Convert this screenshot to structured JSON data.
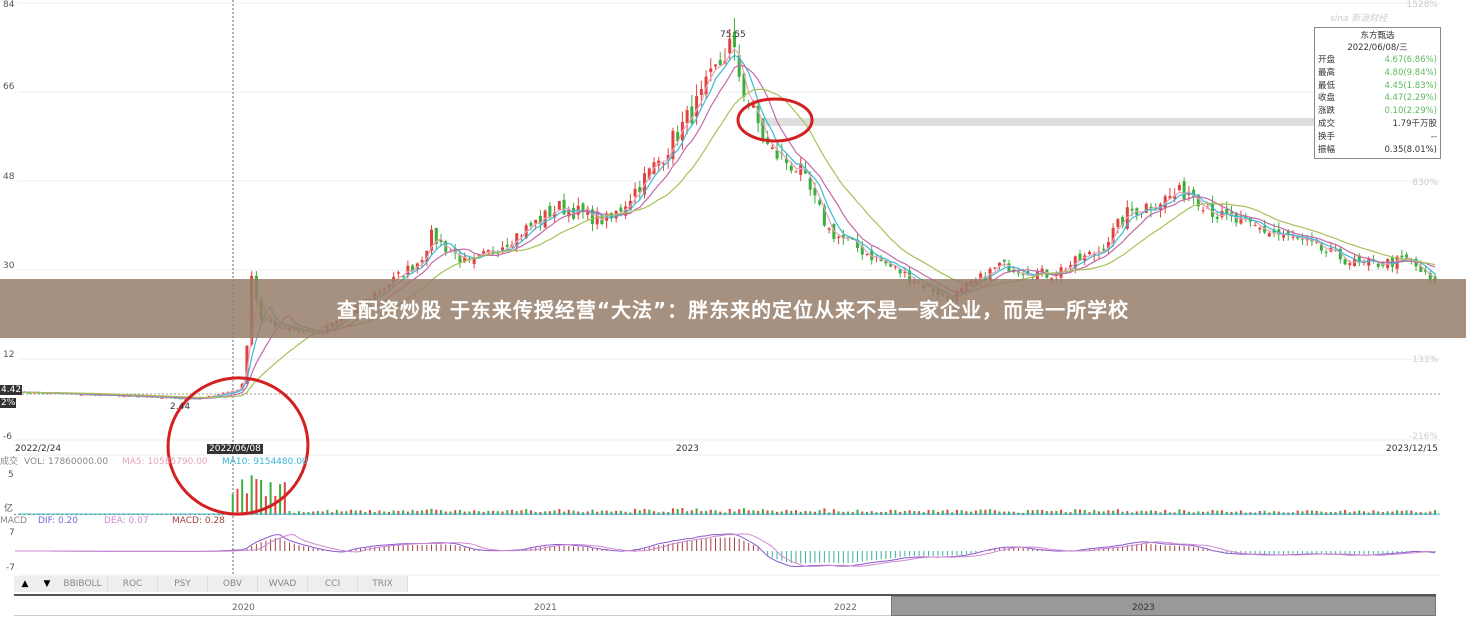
{
  "headline": "查配资炒股 于东来传授经营“大法”：胖东来的定位从来不是一家企业，而是一所学校",
  "watermark": "sina 新浪财经",
  "info_box": {
    "name": "东方甄选",
    "date": "2022/06/08/三",
    "rows": [
      {
        "label": "开盘",
        "value": "4.67(6.86%)",
        "color": "green"
      },
      {
        "label": "最高",
        "value": "4.80(9.84%)",
        "color": "green"
      },
      {
        "label": "最低",
        "value": "4.45(1.83%)",
        "color": "green"
      },
      {
        "label": "收盘",
        "value": "4.47(2.29%)",
        "color": "green"
      },
      {
        "label": "涨跌",
        "value": "0.10(2.29%)",
        "color": "green"
      },
      {
        "label": "成交",
        "value": "1.79千万股",
        "color": "black"
      },
      {
        "label": "换手",
        "value": "--",
        "color": "black"
      },
      {
        "label": "振幅",
        "value": "0.35(8.01%)",
        "color": "black"
      }
    ]
  },
  "price_labels": {
    "max": "75.55",
    "min": "2.44",
    "crosshair_price": "4.42",
    "crosshair_pct": "2%",
    "crosshair_date": "2022/06/08"
  },
  "x_labels": {
    "start": "2022/2/24",
    "mid": "2023",
    "end": "2023/12/15"
  },
  "volume_panel": {
    "prefix": "成交",
    "vol": "VOL: 17860000.00",
    "ma5": "MA5: 10585790.00",
    "ma10": "MA10: 9154480.00",
    "ytop": "5",
    "ybottom": "亿"
  },
  "macd_panel": {
    "prefix": "MACD",
    "dif": "DIF: 0.20",
    "dea": "DEA: 0.07",
    "macd": "MACD: 0.28",
    "ytop": "7",
    "ybottom": "-7"
  },
  "tabs": [
    "BBIBOLL",
    "ROC",
    "PSY",
    "OBV",
    "WVAD",
    "CCI",
    "TRIX"
  ],
  "navigator_years": [
    "2020",
    "2021",
    "2022",
    "2023"
  ],
  "colors": {
    "up": "#e0433f",
    "down": "#3cae3c",
    "ma5": "#e6a5b8",
    "ma10": "#3bb9d6",
    "ma20": "#c26aa8",
    "ma60": "#a8c05a",
    "annotation": "#d42020",
    "banner": "#967d69"
  },
  "chart_data": {
    "type": "candlestick",
    "ylim": [
      -6,
      84
    ],
    "yticks": [
      84,
      66,
      48,
      30,
      12,
      -6
    ],
    "right_pct_ticks": [
      "1528%",
      "830%",
      "133%",
      "-216%"
    ],
    "close_path": [
      [
        "2022-02-24",
        3.9
      ],
      [
        "2022-05-20",
        2.44
      ],
      [
        "2022-06-08",
        4.47
      ],
      [
        "2022-06-11",
        6.4
      ],
      [
        "2022-06-13",
        30
      ],
      [
        "2022-06-18",
        18.7
      ],
      [
        "2022-07-15",
        15.6
      ],
      [
        "2022-08-31",
        31
      ],
      [
        "2022-09-05",
        36
      ],
      [
        "2022-09-23",
        30
      ],
      [
        "2022-11-04",
        42
      ],
      [
        "2022-11-27",
        39
      ],
      [
        "2022-12-20",
        51.7
      ],
      [
        "2023-01-08",
        64
      ],
      [
        "2023-01-22",
        75.55
      ],
      [
        "2023-01-29",
        65
      ],
      [
        "2023-02-09",
        53.7
      ],
      [
        "2023-02-23",
        49.6
      ],
      [
        "2023-03-09",
        37
      ],
      [
        "2023-04-01",
        31
      ],
      [
        "2023-05-04",
        23
      ],
      [
        "2023-05-27",
        30
      ],
      [
        "2023-06-19",
        28
      ],
      [
        "2023-07-12",
        33
      ],
      [
        "2023-07-26",
        41
      ],
      [
        "2023-08-23",
        45.5
      ],
      [
        "2023-09-06",
        40
      ],
      [
        "2023-10-13",
        35
      ],
      [
        "2023-11-10",
        30
      ],
      [
        "2023-12-03",
        31
      ],
      [
        "2023-12-15",
        26
      ]
    ]
  }
}
